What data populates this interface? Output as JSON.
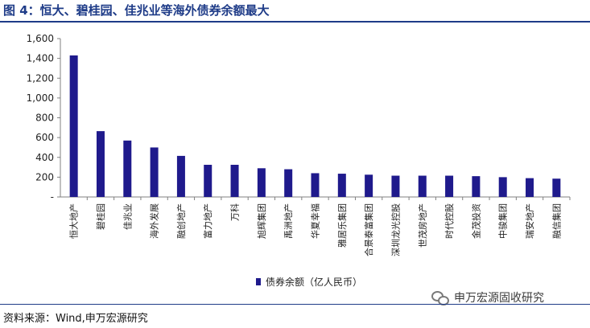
{
  "title": "图 4：恒大、碧桂园、佳兆业等海外债券余额最大",
  "source": "资料来源：Wind,申万宏源研究",
  "watermark": {
    "text": "申万宏源固收研究",
    "icon": "wechat-icon"
  },
  "colors": {
    "bar": "#1f1a8c",
    "title": "#1f3c88",
    "axis": "#808080"
  },
  "chart_data": {
    "type": "bar",
    "categories": [
      "恒大地产",
      "碧桂园",
      "佳兆业",
      "海外发展",
      "融创地产",
      "富力地产",
      "万科",
      "旭辉集团",
      "禹洲地产",
      "华夏幸福",
      "雅居乐集团",
      "合景泰富集团",
      "深圳龙光控股",
      "世茂房地产",
      "时代控股",
      "金茂投资",
      "中骏集团",
      "瑞安地产",
      "融信集团"
    ],
    "series": [
      {
        "name": "债券余额（亿人民币）",
        "values": [
          1430,
          665,
          570,
          500,
          415,
          325,
          325,
          290,
          280,
          240,
          235,
          225,
          215,
          215,
          215,
          210,
          200,
          190,
          185
        ]
      }
    ],
    "ylim": [
      0,
      1600
    ],
    "yticks": [
      0,
      200,
      400,
      600,
      800,
      1000,
      1200,
      1400,
      1600
    ],
    "ytick_labels": [
      "-",
      "200",
      "400",
      "600",
      "800",
      "1,000",
      "1,200",
      "1,400",
      "1,600"
    ],
    "legend_position": "bottom-center",
    "grid": false
  }
}
